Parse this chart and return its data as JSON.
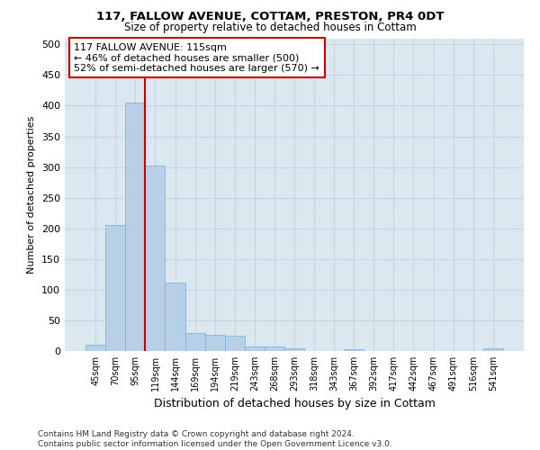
{
  "title": "117, FALLOW AVENUE, COTTAM, PRESTON, PR4 0DT",
  "subtitle": "Size of property relative to detached houses in Cottam",
  "xlabel": "Distribution of detached houses by size in Cottam",
  "ylabel": "Number of detached properties",
  "bar_labels": [
    "45sqm",
    "70sqm",
    "95sqm",
    "119sqm",
    "144sqm",
    "169sqm",
    "194sqm",
    "219sqm",
    "243sqm",
    "268sqm",
    "293sqm",
    "318sqm",
    "343sqm",
    "367sqm",
    "392sqm",
    "417sqm",
    "442sqm",
    "467sqm",
    "491sqm",
    "516sqm",
    "541sqm"
  ],
  "bar_values": [
    10,
    205,
    405,
    303,
    112,
    30,
    27,
    25,
    8,
    7,
    5,
    0,
    0,
    3,
    0,
    0,
    0,
    0,
    0,
    0,
    5
  ],
  "bar_color": "#b8cfe8",
  "bar_edge_color": "#7aacd4",
  "property_line_x": 2.5,
  "annotation_line1": "117 FALLOW AVENUE: 115sqm",
  "annotation_line2": "← 46% of detached houses are smaller (500)",
  "annotation_line3": "52% of semi-detached houses are larger (570) →",
  "annotation_box_color": "#ffffff",
  "annotation_box_edge": "#cc0000",
  "vline_color": "#cc0000",
  "yticks": [
    0,
    50,
    100,
    150,
    200,
    250,
    300,
    350,
    400,
    450,
    500
  ],
  "ylim": [
    0,
    510
  ],
  "grid_color": "#c8d4e4",
  "bg_color": "#dce8f0",
  "footer_line1": "Contains HM Land Registry data © Crown copyright and database right 2024.",
  "footer_line2": "Contains public sector information licensed under the Open Government Licence v3.0."
}
